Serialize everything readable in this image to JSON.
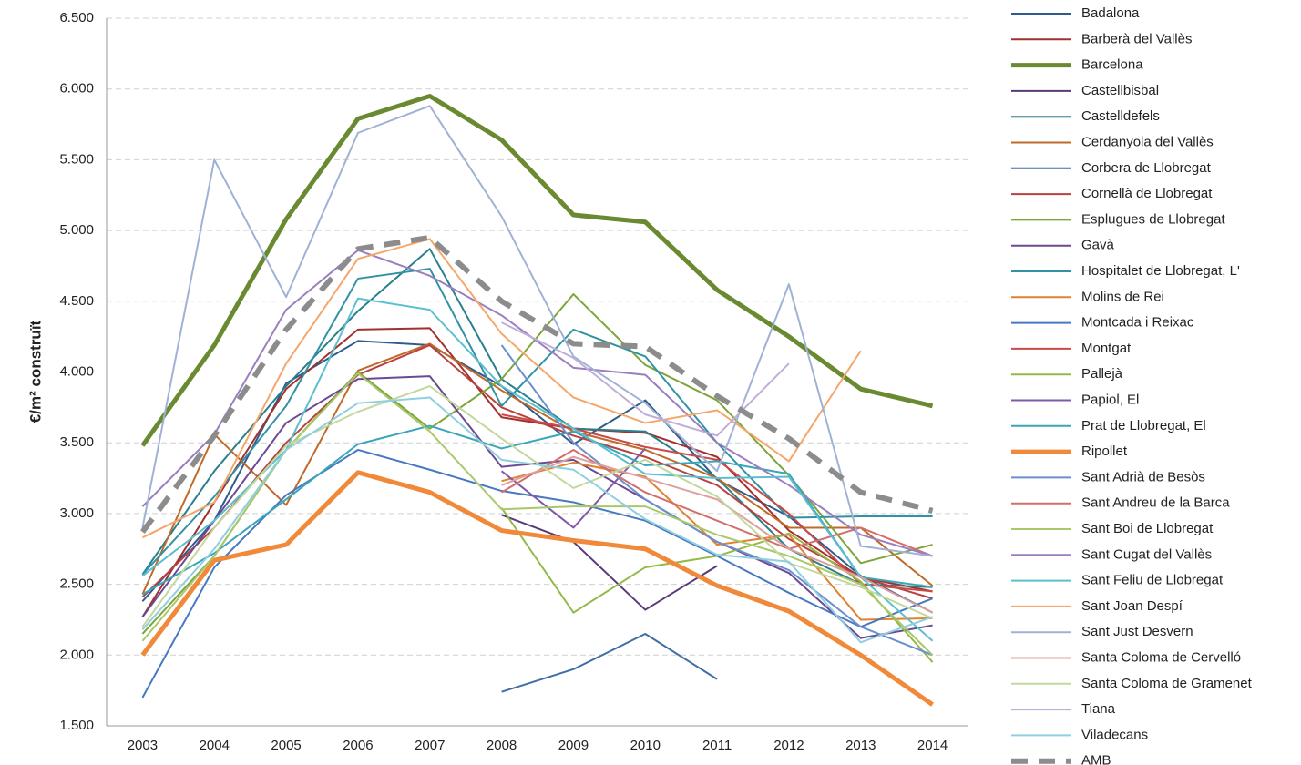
{
  "chart_data": {
    "type": "line",
    "y_label": "€/m² construït",
    "categories": [
      "2003",
      "2004",
      "2005",
      "2006",
      "2007",
      "2008",
      "2009",
      "2010",
      "2011",
      "2012",
      "2013",
      "2014"
    ],
    "ylim": [
      1500,
      6500
    ],
    "yticks": [
      {
        "value": 1500,
        "label": "1.500"
      },
      {
        "value": 2000,
        "label": "2.000"
      },
      {
        "value": 2500,
        "label": "2.500"
      },
      {
        "value": 3000,
        "label": "3.000"
      },
      {
        "value": 3500,
        "label": "3.500"
      },
      {
        "value": 4000,
        "label": "4.000"
      },
      {
        "value": 4500,
        "label": "4.500"
      },
      {
        "value": 5000,
        "label": "5.000"
      },
      {
        "value": 5500,
        "label": "5.500"
      },
      {
        "value": 6000,
        "label": "6.000"
      },
      {
        "value": 6500,
        "label": "6.500"
      }
    ],
    "grid": true,
    "legend": "right",
    "series": [
      {
        "name": "Badalona",
        "color": "#2e5b8c",
        "line_width": 2,
        "values": [
          2380,
          2950,
          3920,
          4220,
          4190,
          3900,
          3490,
          3800,
          3240,
          2980,
          2560,
          2300
        ]
      },
      {
        "name": "Barberà del Vallès",
        "color": "#a3302d",
        "line_width": 2,
        "values": [
          2270,
          3080,
          3880,
          4300,
          4310,
          3680,
          3600,
          3570,
          3400,
          2880,
          2550,
          2450
        ]
      },
      {
        "name": "Barcelona",
        "color": "#6a8a32",
        "line_width": 5,
        "values": [
          3480,
          4190,
          5080,
          5790,
          5950,
          5640,
          5110,
          5060,
          4580,
          4250,
          3880,
          3760
        ]
      },
      {
        "name": "Castellbisbal",
        "color": "#5a3a7a",
        "line_width": 2,
        "values": [
          null,
          null,
          null,
          null,
          null,
          2990,
          2800,
          2320,
          2630,
          null,
          null,
          null
        ]
      },
      {
        "name": "Castelldefels",
        "color": "#2a7f8c",
        "line_width": 2,
        "values": [
          2570,
          3300,
          3900,
          4430,
          4870,
          3950,
          3600,
          3580,
          3250,
          2750,
          2500,
          2480
        ]
      },
      {
        "name": "Cerdanyola del Vallès",
        "color": "#c06a28",
        "line_width": 2,
        "values": [
          2430,
          3560,
          3060,
          4010,
          4200,
          3870,
          3580,
          3450,
          3250,
          2900,
          2900,
          2490
        ]
      },
      {
        "name": "Corbera de Llobregat",
        "color": "#3f6ea8",
        "line_width": 2,
        "values": [
          null,
          null,
          null,
          null,
          null,
          1740,
          1900,
          2150,
          1830,
          null,
          null,
          null
        ]
      },
      {
        "name": "Cornellà de Llobregat",
        "color": "#b8423f",
        "line_width": 2,
        "values": [
          2410,
          2900,
          3500,
          3980,
          4190,
          3750,
          3550,
          3400,
          3200,
          2820,
          2550,
          2400
        ]
      },
      {
        "name": "Esplugues de Llobregat",
        "color": "#7ea43a",
        "line_width": 2,
        "values": [
          2150,
          2700,
          3450,
          4000,
          3600,
          3950,
          4550,
          4050,
          3800,
          3270,
          2650,
          2780
        ]
      },
      {
        "name": "Gavà",
        "color": "#6b4a93",
        "line_width": 2,
        "values": [
          2270,
          2950,
          3640,
          3950,
          3970,
          3330,
          3380,
          3100,
          2800,
          2580,
          2120,
          2210
        ]
      },
      {
        "name": "Hospitalet de Llobregat, L'",
        "color": "#3192a3",
        "line_width": 2,
        "values": [
          2570,
          3120,
          3760,
          4660,
          4730,
          3760,
          4300,
          4110,
          3500,
          2970,
          2980,
          2980
        ]
      },
      {
        "name": "Molins de Rei",
        "color": "#e0822f",
        "line_width": 2,
        "values": [
          null,
          null,
          null,
          null,
          null,
          3230,
          3360,
          3260,
          2780,
          2850,
          2250,
          2260
        ]
      },
      {
        "name": "Montcada i Reixac",
        "color": "#4878c0",
        "line_width": 2,
        "values": [
          1700,
          2620,
          3130,
          3450,
          3310,
          3160,
          3080,
          2950,
          2700,
          2440,
          2200,
          2400
        ]
      },
      {
        "name": "Montgat",
        "color": "#c94a46",
        "line_width": 2,
        "values": [
          null,
          null,
          null,
          null,
          null,
          3700,
          3600,
          3470,
          3380,
          3000,
          2500,
          2450
        ]
      },
      {
        "name": "Pallejà",
        "color": "#93ba48",
        "line_width": 2,
        "values": [
          null,
          null,
          null,
          null,
          null,
          3040,
          2300,
          2620,
          2700,
          2860,
          2520,
          1950
        ]
      },
      {
        "name": "Papiol, El",
        "color": "#7e5aa8",
        "line_width": 2,
        "values": [
          null,
          null,
          null,
          null,
          null,
          3300,
          2900,
          3460,
          null,
          null,
          null,
          null
        ]
      },
      {
        "name": "Prat de Llobregat, El",
        "color": "#3aa6ba",
        "line_width": 2,
        "values": [
          2430,
          2720,
          3100,
          3490,
          3620,
          3460,
          3580,
          3340,
          3370,
          3280,
          2550,
          2480
        ]
      },
      {
        "name": "Ripollet",
        "color": "#f08a3a",
        "line_width": 5,
        "values": [
          2000,
          2670,
          2780,
          3290,
          3150,
          2880,
          2810,
          2750,
          2490,
          2310,
          2000,
          1650
        ]
      },
      {
        "name": "Sant Adrià de Besòs",
        "color": "#6a8fcc",
        "line_width": 2,
        "values": [
          null,
          null,
          null,
          null,
          null,
          4190,
          3500,
          3100,
          2800,
          2600,
          2200,
          2000
        ]
      },
      {
        "name": "Sant Andreu de la Barca",
        "color": "#d26e6b",
        "line_width": 2,
        "values": [
          null,
          null,
          null,
          null,
          null,
          3150,
          3450,
          3150,
          2950,
          2750,
          2900,
          2700
        ]
      },
      {
        "name": "Sant Boi de Llobregat",
        "color": "#a8c96a",
        "line_width": 2,
        "values": [
          2100,
          2700,
          3450,
          3990,
          3580,
          3030,
          3050,
          3050,
          2850,
          2700,
          2500,
          2000
        ]
      },
      {
        "name": "Sant Cugat del Vallès",
        "color": "#9a7ec0",
        "line_width": 2,
        "values": [
          3050,
          3560,
          4440,
          4860,
          4680,
          4400,
          4030,
          3980,
          3500,
          3200,
          2850,
          2700
        ]
      },
      {
        "name": "Sant Feliu de Llobregat",
        "color": "#5bbfd0",
        "line_width": 2,
        "values": [
          2560,
          2950,
          3450,
          4520,
          4440,
          3900,
          3600,
          3280,
          3250,
          3260,
          2550,
          2100
        ]
      },
      {
        "name": "Sant Joan Despí",
        "color": "#f6a66a",
        "line_width": 2,
        "values": [
          2830,
          3080,
          4060,
          4800,
          4940,
          4270,
          3820,
          3640,
          3730,
          3370,
          4150,
          null
        ]
      },
      {
        "name": "Sant Just Desvern",
        "color": "#9fb2d6",
        "line_width": 2,
        "values": [
          2900,
          5500,
          4530,
          5690,
          5880,
          5100,
          4110,
          3780,
          3300,
          4620,
          2770,
          2700
        ]
      },
      {
        "name": "Santa Coloma de Cervelló",
        "color": "#dea09e",
        "line_width": 2,
        "values": [
          null,
          null,
          null,
          null,
          null,
          3200,
          3400,
          3250,
          3100,
          2750,
          2550,
          2300
        ]
      },
      {
        "name": "Santa Coloma de Gramenet",
        "color": "#c3d89c",
        "line_width": 2,
        "values": [
          2200,
          2900,
          3480,
          3720,
          3900,
          3530,
          3180,
          3380,
          3120,
          2650,
          2480,
          2260
        ]
      },
      {
        "name": "Tiana",
        "color": "#bfaed6",
        "line_width": 2,
        "values": [
          null,
          null,
          null,
          null,
          null,
          4350,
          4100,
          3700,
          3550,
          4060,
          null,
          null
        ]
      },
      {
        "name": "Viladecans",
        "color": "#8fcfe0",
        "line_width": 2,
        "values": [
          2180,
          2750,
          3450,
          3780,
          3820,
          3380,
          3310,
          2960,
          2710,
          2660,
          2090,
          2270
        ]
      },
      {
        "name": "AMB",
        "color": "#8c8c8c",
        "line_width": 6,
        "dashed": true,
        "values": [
          2870,
          3550,
          4300,
          4870,
          4950,
          4500,
          4200,
          4180,
          3830,
          3530,
          3150,
          3020
        ]
      }
    ]
  }
}
